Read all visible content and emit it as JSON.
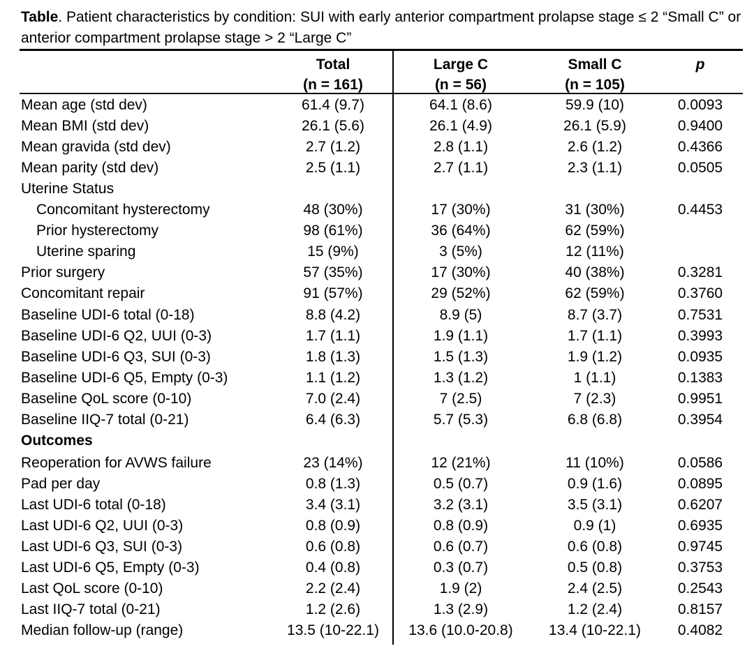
{
  "caption": {
    "bold": "Table",
    "text": ". Patient characteristics by condition: SUI with early anterior compartment prolapse stage ≤ 2 “Small C” or anterior compartment prolapse stage > 2 “Large C”"
  },
  "headers": {
    "total": [
      "Total",
      "(n = 161)"
    ],
    "large": [
      "Large C",
      "(n = 56)"
    ],
    "small": [
      "Small C",
      "(n = 105)"
    ],
    "p": "p"
  },
  "rows": [
    {
      "label": "Mean age (std dev)",
      "total": "61.4 (9.7)",
      "large": "64.1 (8.6)",
      "small": "59.9 (10)",
      "p": "0.0093"
    },
    {
      "label": "Mean BMI (std dev)",
      "total": "26.1 (5.6)",
      "large": "26.1 (4.9)",
      "small": "26.1 (5.9)",
      "p": "0.9400"
    },
    {
      "label": "Mean gravida (std dev)",
      "total": "2.7 (1.2)",
      "large": "2.8 (1.1)",
      "small": "2.6 (1.2)",
      "p": "0.4366"
    },
    {
      "label": "Mean parity (std dev)",
      "total": "2.5 (1.1)",
      "large": "2.7 (1.1)",
      "small": "2.3 (1.1)",
      "p": "0.0505"
    },
    {
      "label": "Uterine Status",
      "total": "",
      "large": "",
      "small": "",
      "p": ""
    },
    {
      "label": "Concomitant hysterectomy",
      "total": "48 (30%)",
      "large": "17 (30%)",
      "small": "31 (30%)",
      "p": "0.4453",
      "indent": true
    },
    {
      "label": "Prior hysterectomy",
      "total": "98 (61%)",
      "large": "36 (64%)",
      "small": "62 (59%)",
      "p": "",
      "indent": true
    },
    {
      "label": "Uterine sparing",
      "total": "15 (9%)",
      "large": "3 (5%)",
      "small": "12 (11%)",
      "p": "",
      "indent": true
    },
    {
      "label": "Prior surgery",
      "total": "57 (35%)",
      "large": "17 (30%)",
      "small": "40 (38%)",
      "p": "0.3281"
    },
    {
      "label": "Concomitant repair",
      "total": "91 (57%)",
      "large": "29 (52%)",
      "small": "62 (59%)",
      "p": "0.3760"
    },
    {
      "label": "Baseline UDI-6 total (0-18)",
      "total": "8.8 (4.2)",
      "large": "8.9 (5)",
      "small": "8.7 (3.7)",
      "p": "0.7531"
    },
    {
      "label": "Baseline UDI-6 Q2, UUI (0-3)",
      "total": "1.7 (1.1)",
      "large": "1.9 (1.1)",
      "small": "1.7 (1.1)",
      "p": "0.3993"
    },
    {
      "label": "Baseline UDI-6 Q3, SUI (0-3)",
      "total": "1.8 (1.3)",
      "large": "1.5 (1.3)",
      "small": "1.9 (1.2)",
      "p": "0.0935"
    },
    {
      "label": "Baseline UDI-6 Q5, Empty (0-3)",
      "total": "1.1 (1.2)",
      "large": "1.3 (1.2)",
      "small": "1 (1.1)",
      "p": "0.1383"
    },
    {
      "label": "Baseline QoL score (0-10)",
      "total": "7.0 (2.4)",
      "large": "7 (2.5)",
      "small": "7 (2.3)",
      "p": "0.9951"
    },
    {
      "label": "Baseline IIQ-7 total (0-21)",
      "total": "6.4 (6.3)",
      "large": "5.7 (5.3)",
      "small": "6.8 (6.8)",
      "p": "0.3954"
    },
    {
      "label": "Outcomes",
      "total": "",
      "large": "",
      "small": "",
      "p": "",
      "section": true
    },
    {
      "label": "Reoperation for AVWS failure",
      "total": "23 (14%)",
      "large": "12 (21%)",
      "small": "11 (10%)",
      "p": "0.0586"
    },
    {
      "label": "Pad per day",
      "total": "0.8 (1.3)",
      "large": "0.5 (0.7)",
      "small": "0.9 (1.6)",
      "p": "0.0895"
    },
    {
      "label": "Last UDI-6 total (0-18)",
      "total": "3.4 (3.1)",
      "large": "3.2 (3.1)",
      "small": "3.5 (3.1)",
      "p": "0.6207"
    },
    {
      "label": "Last UDI-6 Q2, UUI (0-3)",
      "total": "0.8 (0.9)",
      "large": "0.8 (0.9)",
      "small": "0.9 (1)",
      "p": "0.6935"
    },
    {
      "label": "Last UDI-6 Q3, SUI (0-3)",
      "total": "0.6 (0.8)",
      "large": "0.6 (0.7)",
      "small": "0.6 (0.8)",
      "p": "0.9745"
    },
    {
      "label": "Last UDI-6 Q5, Empty (0-3)",
      "total": "0.4 (0.8)",
      "large": "0.3 (0.7)",
      "small": "0.5 (0.8)",
      "p": "0.3753"
    },
    {
      "label": "Last QoL score (0-10)",
      "total": "2.2 (2.4)",
      "large": "1.9 (2)",
      "small": "2.4 (2.5)",
      "p": "0.2543"
    },
    {
      "label": "Last IIQ-7 total (0-21)",
      "total": "1.2 (2.6)",
      "large": "1.3 (2.9)",
      "small": "1.2 (2.4)",
      "p": "0.8157"
    },
    {
      "label": "Median follow-up (range)",
      "total": "13.5 (10-22.1)",
      "large": "13.6 (10.0-20.8)",
      "small": "13.4 (10-22.1)",
      "p": "0.4082"
    }
  ]
}
